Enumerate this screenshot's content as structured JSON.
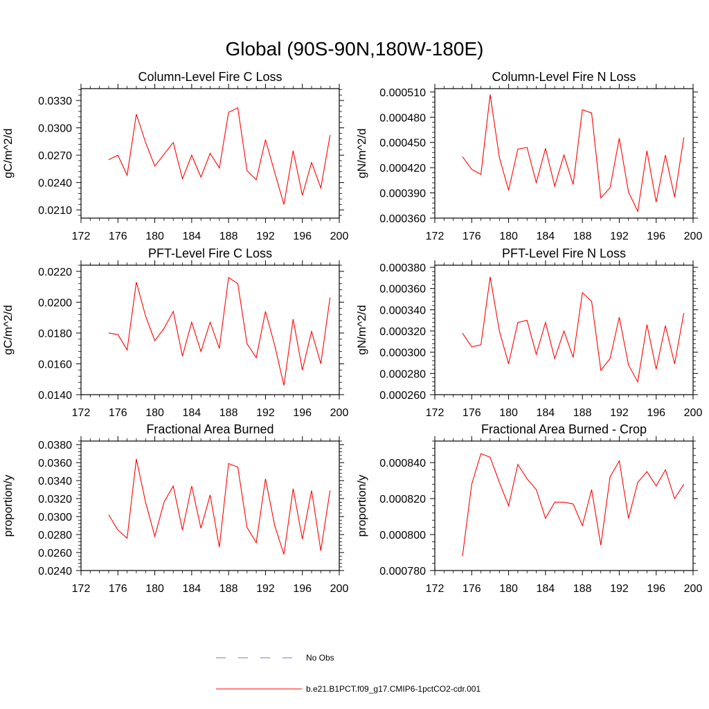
{
  "figure": {
    "title": "Global (90S-90N,180W-180E)"
  },
  "colors": {
    "model_line": "#ff0000",
    "obs_line": "#6f6fd6",
    "axis": "#000000"
  },
  "legend": {
    "entries": [
      {
        "label": "No Obs",
        "style": "dashed",
        "color": "#6f6fd6"
      },
      {
        "label": "b.e21.B1PCT.f09_g17.CMIP6-1pctCO2-cdr.001",
        "style": "solid",
        "color": "#ff0000"
      }
    ]
  },
  "chart_data": [
    {
      "type": "line",
      "title": "Column-Level Fire C Loss",
      "xlabel": "",
      "ylabel": "gC/m^2/d",
      "xlim": [
        172,
        200
      ],
      "ylim": [
        0.0201,
        0.0343
      ],
      "xticks": [
        "172",
        "176",
        "180",
        "184",
        "188",
        "192",
        "196",
        "200"
      ],
      "yticks": [
        "0.0210",
        "0.0240",
        "0.0270",
        "0.0300",
        "0.0330"
      ],
      "x": [
        175,
        176,
        177,
        178,
        179,
        180,
        181,
        182,
        183,
        184,
        185,
        186,
        187,
        188,
        189,
        190,
        191,
        192,
        193,
        194,
        195,
        196,
        197,
        198,
        199
      ],
      "series": [
        {
          "name": "b.e21.B1PCT.f09_g17.CMIP6-1pctCO2-cdr.001",
          "values": [
            0.0265,
            0.027,
            0.0248,
            0.0315,
            0.0284,
            0.0258,
            0.0271,
            0.0284,
            0.0244,
            0.027,
            0.0246,
            0.0272,
            0.0256,
            0.0317,
            0.0322,
            0.0253,
            0.0243,
            0.0287,
            0.0251,
            0.0216,
            0.0275,
            0.0226,
            0.0262,
            0.0234,
            0.0292
          ]
        }
      ]
    },
    {
      "type": "line",
      "title": "Column-Level Fire N Loss",
      "xlabel": "",
      "ylabel": "gN/m^2/d",
      "xlim": [
        172,
        200
      ],
      "ylim": [
        0.00036,
        0.000514
      ],
      "xticks": [
        "172",
        "176",
        "180",
        "184",
        "188",
        "192",
        "196",
        "200"
      ],
      "yticks": [
        "0.000360",
        "0.000390",
        "0.000420",
        "0.000450",
        "0.000480",
        "0.000510"
      ],
      "x": [
        175,
        176,
        177,
        178,
        179,
        180,
        181,
        182,
        183,
        184,
        185,
        186,
        187,
        188,
        189,
        190,
        191,
        192,
        193,
        194,
        195,
        196,
        197,
        198,
        199
      ],
      "series": [
        {
          "name": "b.e21.B1PCT.f09_g17.CMIP6-1pctCO2-cdr.001",
          "values": [
            0.000433,
            0.000418,
            0.000412,
            0.000507,
            0.000432,
            0.000393,
            0.000442,
            0.000444,
            0.000402,
            0.000443,
            0.000398,
            0.000435,
            0.0004,
            0.000489,
            0.000485,
            0.000384,
            0.000396,
            0.000455,
            0.000391,
            0.000368,
            0.00044,
            0.000379,
            0.000435,
            0.000385,
            0.000456
          ]
        }
      ]
    },
    {
      "type": "line",
      "title": "PFT-Level Fire C Loss",
      "xlabel": "",
      "ylabel": "gC/m^2/d",
      "xlim": [
        172,
        200
      ],
      "ylim": [
        0.014,
        0.0224
      ],
      "xticks": [
        "172",
        "176",
        "180",
        "184",
        "188",
        "192",
        "196",
        "200"
      ],
      "yticks": [
        "0.0140",
        "0.0160",
        "0.0180",
        "0.0200",
        "0.0220"
      ],
      "x": [
        175,
        176,
        177,
        178,
        179,
        180,
        181,
        182,
        183,
        184,
        185,
        186,
        187,
        188,
        189,
        190,
        191,
        192,
        193,
        194,
        195,
        196,
        197,
        198,
        199
      ],
      "series": [
        {
          "name": "b.e21.B1PCT.f09_g17.CMIP6-1pctCO2-cdr.001",
          "values": [
            0.018,
            0.0179,
            0.0169,
            0.0213,
            0.0191,
            0.0175,
            0.0183,
            0.0194,
            0.0165,
            0.0187,
            0.0168,
            0.0187,
            0.017,
            0.0216,
            0.0212,
            0.0173,
            0.0164,
            0.0194,
            0.0172,
            0.0146,
            0.0189,
            0.0156,
            0.0181,
            0.016,
            0.0203
          ]
        }
      ]
    },
    {
      "type": "line",
      "title": "PFT-Level Fire N Loss",
      "xlabel": "",
      "ylabel": "gN/m^2/d",
      "xlim": [
        172,
        200
      ],
      "ylim": [
        0.00026,
        0.000382
      ],
      "xticks": [
        "172",
        "176",
        "180",
        "184",
        "188",
        "192",
        "196",
        "200"
      ],
      "yticks": [
        "0.000260",
        "0.000280",
        "0.000300",
        "0.000320",
        "0.000340",
        "0.000360",
        "0.000380"
      ],
      "x": [
        175,
        176,
        177,
        178,
        179,
        180,
        181,
        182,
        183,
        184,
        185,
        186,
        187,
        188,
        189,
        190,
        191,
        192,
        193,
        194,
        195,
        196,
        197,
        198,
        199
      ],
      "series": [
        {
          "name": "b.e21.B1PCT.f09_g17.CMIP6-1pctCO2-cdr.001",
          "values": [
            0.000318,
            0.000305,
            0.000307,
            0.000371,
            0.00032,
            0.000289,
            0.000328,
            0.00033,
            0.000298,
            0.000328,
            0.000294,
            0.00032,
            0.000295,
            0.000356,
            0.000348,
            0.000283,
            0.000294,
            0.000333,
            0.000288,
            0.000272,
            0.000326,
            0.000284,
            0.000325,
            0.000289,
            0.000337
          ]
        }
      ]
    },
    {
      "type": "line",
      "title": "Fractional Area Burned",
      "xlabel": "",
      "ylabel": "proportion/y",
      "xlim": [
        172,
        200
      ],
      "ylim": [
        0.024,
        0.0384
      ],
      "xticks": [
        "172",
        "176",
        "180",
        "184",
        "188",
        "192",
        "196",
        "200"
      ],
      "yticks": [
        "0.0240",
        "0.0260",
        "0.0280",
        "0.0300",
        "0.0320",
        "0.0340",
        "0.0360",
        "0.0380"
      ],
      "x": [
        175,
        176,
        177,
        178,
        179,
        180,
        181,
        182,
        183,
        184,
        185,
        186,
        187,
        188,
        189,
        190,
        191,
        192,
        193,
        194,
        195,
        196,
        197,
        198,
        199
      ],
      "series": [
        {
          "name": "b.e21.B1PCT.f09_g17.CMIP6-1pctCO2-cdr.001",
          "values": [
            0.0302,
            0.0285,
            0.0276,
            0.0364,
            0.0316,
            0.0278,
            0.0316,
            0.0334,
            0.0285,
            0.0334,
            0.0287,
            0.0324,
            0.0266,
            0.0359,
            0.0355,
            0.0288,
            0.0271,
            0.0342,
            0.029,
            0.0258,
            0.0331,
            0.0275,
            0.0329,
            0.0262,
            0.0329
          ]
        }
      ]
    },
    {
      "type": "line",
      "title": "Fractional Area Burned - Crop",
      "xlabel": "",
      "ylabel": "proportion/y",
      "xlim": [
        172,
        200
      ],
      "ylim": [
        0.00078,
        0.000852
      ],
      "xticks": [
        "172",
        "176",
        "180",
        "184",
        "188",
        "192",
        "196",
        "200"
      ],
      "yticks": [
        "0.000780",
        "0.000800",
        "0.000820",
        "0.000840"
      ],
      "x": [
        175,
        176,
        177,
        178,
        179,
        180,
        181,
        182,
        183,
        184,
        185,
        186,
        187,
        188,
        189,
        190,
        191,
        192,
        193,
        194,
        195,
        196,
        197,
        198,
        199
      ],
      "series": [
        {
          "name": "b.e21.B1PCT.f09_g17.CMIP6-1pctCO2-cdr.001",
          "values": [
            0.000788,
            0.000828,
            0.000845,
            0.000843,
            0.000829,
            0.000816,
            0.000839,
            0.000831,
            0.000825,
            0.000809,
            0.000818,
            0.000818,
            0.000817,
            0.000805,
            0.000825,
            0.000794,
            0.000832,
            0.000841,
            0.000809,
            0.000829,
            0.000835,
            0.000827,
            0.000836,
            0.00082,
            0.000828
          ]
        }
      ]
    }
  ]
}
